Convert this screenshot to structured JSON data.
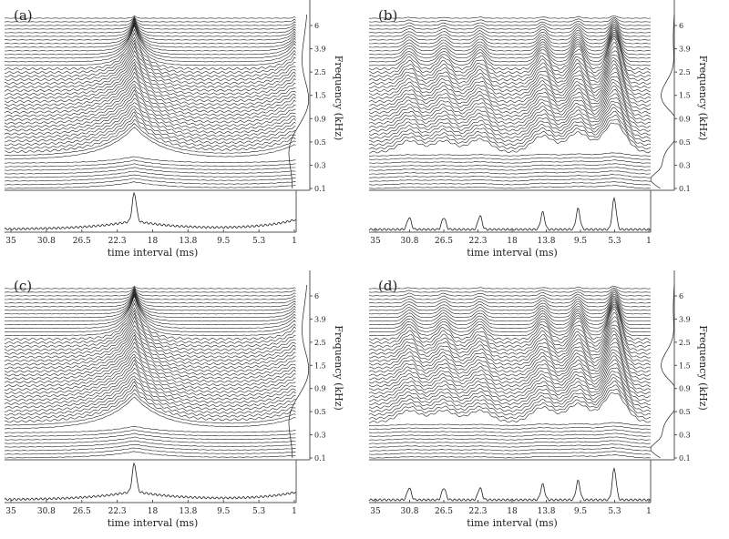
{
  "chart_data": [
    {
      "panel_label": "(a)",
      "type": "line",
      "xlabel": "time interval (ms)",
      "ylabel": "Frequency (kHz)",
      "x_ticks": [
        "35",
        "30.8",
        "26.5",
        "22.3",
        "18",
        "13.8",
        "9.5",
        "5.3",
        "1"
      ],
      "y_ticks": [
        "0.1",
        "0.3",
        "0.5",
        "0.9",
        "1.5",
        "2.5",
        "3.9",
        "6"
      ],
      "xlim": [
        35,
        1
      ],
      "peaks_ms": [
        20.2,
        1
      ],
      "peak_heights": [
        1.0,
        0.45
      ],
      "pattern": "single"
    },
    {
      "panel_label": "(b)",
      "type": "line",
      "xlabel": "time interval (ms)",
      "ylabel": "Frequency (kHz)",
      "x_ticks": [
        "35",
        "30.8",
        "26.5",
        "22.3",
        "18",
        "13.8",
        "9.5",
        "5.3",
        "1"
      ],
      "y_ticks": [
        "0.1",
        "0.3",
        "0.5",
        "0.9",
        "1.5",
        "2.5",
        "3.9",
        "6"
      ],
      "xlim": [
        35,
        1
      ],
      "peaks_ms": [
        30.8,
        26.5,
        22.0,
        14.2,
        9.8,
        5.3
      ],
      "peak_heights": [
        0.35,
        0.35,
        0.4,
        0.5,
        0.6,
        0.9
      ],
      "pattern": "periodic"
    },
    {
      "panel_label": "(c)",
      "type": "line",
      "xlabel": "time interval (ms)",
      "ylabel": "Frequency (kHz)",
      "x_ticks": [
        "35",
        "30.8",
        "26.5",
        "22.3",
        "18",
        "13.8",
        "9.5",
        "5.3",
        "1"
      ],
      "y_ticks": [
        "0.1",
        "0.3",
        "0.5",
        "0.9",
        "1.5",
        "2.5",
        "3.9",
        "6"
      ],
      "xlim": [
        35,
        1
      ],
      "peaks_ms": [
        20.2,
        1
      ],
      "peak_heights": [
        1.0,
        0.35
      ],
      "pattern": "single"
    },
    {
      "panel_label": "(d)",
      "type": "line",
      "xlabel": "time interval (ms)",
      "ylabel": "Frequency (kHz)",
      "x_ticks": [
        "35",
        "30.8",
        "26.5",
        "22.3",
        "18",
        "13.8",
        "9.5",
        "5.3",
        "1"
      ],
      "y_ticks": [
        "0.1",
        "0.3",
        "0.5",
        "0.9",
        "1.5",
        "2.5",
        "3.9",
        "6"
      ],
      "xlim": [
        35,
        1
      ],
      "peaks_ms": [
        30.8,
        26.5,
        22.0,
        14.2,
        9.8,
        5.3
      ],
      "peak_heights": [
        0.35,
        0.35,
        0.35,
        0.45,
        0.55,
        0.9
      ],
      "pattern": "periodic"
    }
  ],
  "colors": {
    "line": "#222222",
    "axis": "#555555"
  }
}
